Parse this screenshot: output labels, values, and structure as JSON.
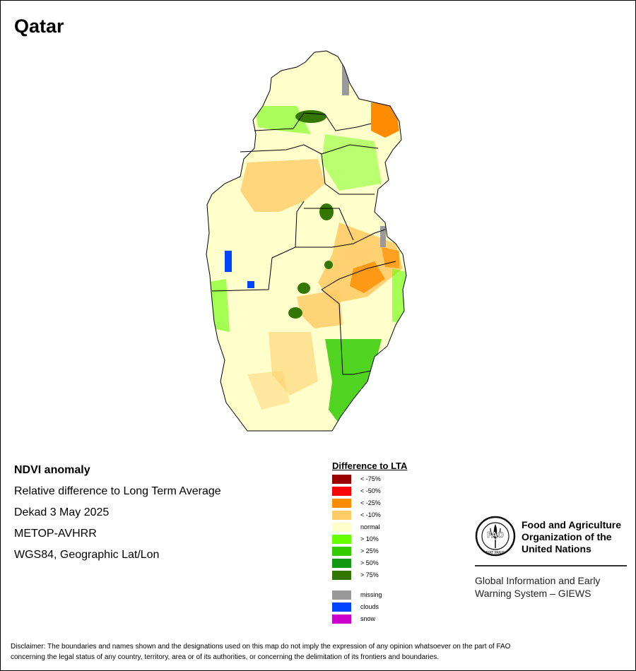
{
  "title": "Qatar",
  "info": {
    "product": "NDVI anomaly",
    "description": "Relative difference to Long Term Average",
    "period": "Dekad 3 May 2025",
    "sensor": "METOP-AVHRR",
    "projection": "WGS84, Geographic Lat/Lon"
  },
  "legend": {
    "title": "Difference to LTA",
    "items": [
      {
        "label": "< -75%",
        "color": "#990000"
      },
      {
        "label": "< -50%",
        "color": "#ff0000"
      },
      {
        "label": "< -25%",
        "color": "#ff8c00"
      },
      {
        "label": "< -10%",
        "color": "#ffcc66"
      },
      {
        "label": "normal",
        "color": "#ffffcc"
      },
      {
        "label": "> 10%",
        "color": "#66ff00"
      },
      {
        "label": "> 25%",
        "color": "#33cc00"
      },
      {
        "label": "> 50%",
        "color": "#119911"
      },
      {
        "label": "> 75%",
        "color": "#337700"
      }
    ],
    "extra": [
      {
        "label": "missing",
        "color": "#999999"
      },
      {
        "label": "clouds",
        "color": "#0044ff"
      },
      {
        "label": "snow",
        "color": "#cc00cc"
      }
    ]
  },
  "organization": {
    "name_line1": "Food and Agriculture",
    "name_line2": "Organization of the",
    "name_line3": "United Nations",
    "logo_text": "FAO",
    "logo_motto": "FIAT PANIS",
    "system_line1": "Global Information and Early",
    "system_line2": "Warning System – GIEWS"
  },
  "disclaimer_line1": "Disclaimer: The boundaries and names shown and the designations used on this map do not imply the expression of any opinion whatsoever on the part of FAO",
  "disclaimer_line2": "concerning the legal status of any country, territory, area or of its authorities, or concerning the delimitation of its frontiers and boundaries."
}
